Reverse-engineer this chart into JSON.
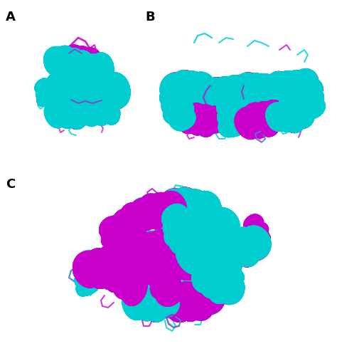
{
  "panel_labels": [
    "A",
    "B",
    "C"
  ],
  "label_A": [
    0.02,
    0.97
  ],
  "label_B": [
    0.44,
    0.97
  ],
  "label_C": [
    0.02,
    0.52
  ],
  "label_fontsize": 13,
  "background_color": "#ffffff",
  "cyan": "#00CED1",
  "magenta": "#CC00CC",
  "figure_width": 4.74,
  "figure_height": 4.86,
  "dpi": 100
}
